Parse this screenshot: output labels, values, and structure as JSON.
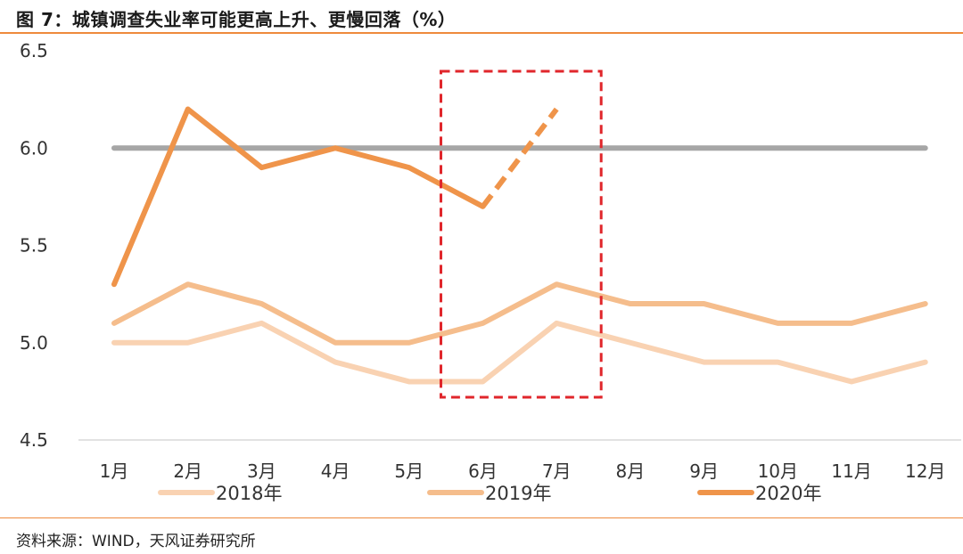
{
  "header": {
    "title": "图 7：城镇调查失业率可能更高上升、更慢回落（%）"
  },
  "footer": {
    "source": "资料来源：WIND，天风证券研究所"
  },
  "colors": {
    "accent": "#ee8a3c",
    "s2018": "#f9d2b2",
    "s2019": "#f5bd8c",
    "s2020": "#ef944a",
    "ref": "#a6a6a6",
    "box": "#e0262b"
  },
  "chart_data": {
    "type": "line",
    "title": "城镇调查失业率可能更高上升、更慢回落（%）",
    "categories": [
      "1月",
      "2月",
      "3月",
      "4月",
      "5月",
      "6月",
      "7月",
      "8月",
      "9月",
      "10月",
      "11月",
      "12月"
    ],
    "ylim": [
      4.5,
      6.5
    ],
    "yticks": [
      "4.5",
      "5.0",
      "5.5",
      "6.0",
      "6.5"
    ],
    "grid": false,
    "legend_position": "bottom",
    "reference_line": {
      "value": 6.0
    },
    "series": [
      {
        "name": "2018年",
        "values": [
          5.0,
          5.0,
          5.1,
          4.9,
          4.8,
          4.8,
          5.1,
          5.0,
          4.9,
          4.9,
          4.8,
          4.9
        ]
      },
      {
        "name": "2019年",
        "values": [
          5.1,
          5.3,
          5.2,
          5.0,
          5.0,
          5.1,
          5.3,
          5.2,
          5.2,
          5.1,
          5.1,
          5.2
        ]
      },
      {
        "name": "2020年",
        "values": [
          5.3,
          6.2,
          5.9,
          6.0,
          5.9,
          5.7,
          6.2,
          null,
          null,
          null,
          null,
          null
        ],
        "dashed_from_index": 5
      }
    ],
    "highlight_box": {
      "from_category": "6月",
      "to_category": "7月"
    }
  }
}
